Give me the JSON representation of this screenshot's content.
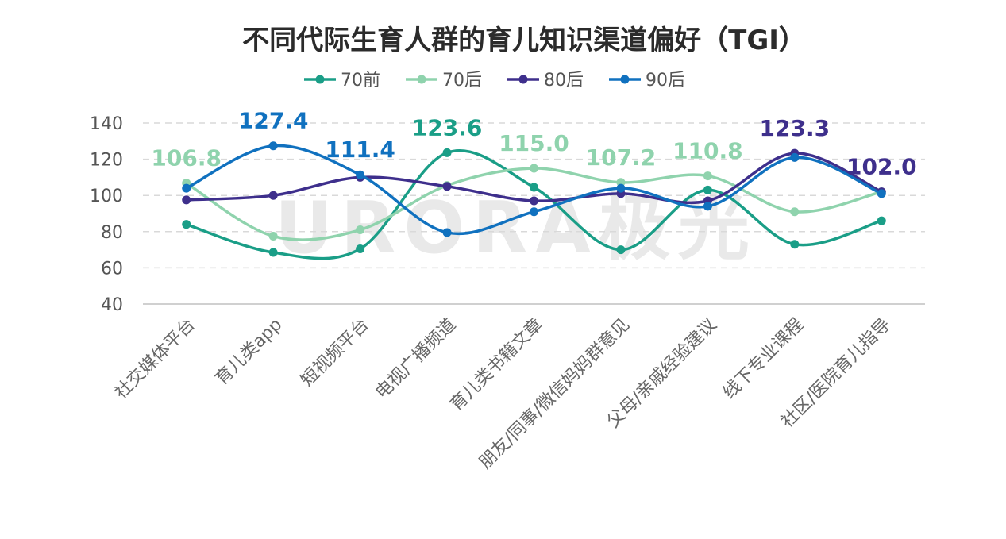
{
  "chart_data": {
    "type": "line",
    "title": "不同代际生育人群的育儿知识渠道偏好（TGI）",
    "watermark": "URORA极光",
    "categories": [
      "社交媒体平台",
      "育儿类app",
      "短视频平台",
      "电视广播频道",
      "育儿类书籍文章",
      "朋友/同事/微信妈妈群意见",
      "父母/亲戚经验建议",
      "线下专业课程",
      "社区/医院育儿指导"
    ],
    "ylim": [
      40,
      140
    ],
    "yticks": [
      40,
      60,
      80,
      100,
      120,
      140
    ],
    "grid": true,
    "legend_position": "top",
    "series": [
      {
        "name": "70前",
        "color": "#1a9e87",
        "values": [
          84,
          68.5,
          70.5,
          123.6,
          104.5,
          70,
          103,
          73,
          86
        ]
      },
      {
        "name": "70后",
        "color": "#8fd3ad",
        "values": [
          106.8,
          77.5,
          81,
          105.5,
          115.0,
          107.2,
          110.8,
          91,
          102
        ]
      },
      {
        "name": "80后",
        "color": "#3e2f8c",
        "values": [
          97.5,
          100,
          110,
          105,
          97,
          101,
          97,
          123.3,
          102.0
        ]
      },
      {
        "name": "90后",
        "color": "#1071bf",
        "values": [
          104,
          127.4,
          111.4,
          79.5,
          91,
          104,
          94,
          121,
          101
        ]
      }
    ],
    "annotations": [
      {
        "text": "106.8",
        "category_index": 0,
        "series": "70后",
        "color": "#8fd3ad"
      },
      {
        "text": "127.4",
        "category_index": 1,
        "series": "90后",
        "color": "#1071bf"
      },
      {
        "text": "111.4",
        "category_index": 2,
        "series": "90后",
        "color": "#1071bf"
      },
      {
        "text": "123.6",
        "category_index": 3,
        "series": "70前",
        "color": "#1a9e87"
      },
      {
        "text": "115.0",
        "category_index": 4,
        "series": "70后",
        "color": "#8fd3ad"
      },
      {
        "text": "107.2",
        "category_index": 5,
        "series": "70后",
        "color": "#8fd3ad"
      },
      {
        "text": "110.8",
        "category_index": 6,
        "series": "70后",
        "color": "#8fd3ad"
      },
      {
        "text": "123.3",
        "category_index": 7,
        "series": "80后",
        "color": "#3e2f8c"
      },
      {
        "text": "102.0",
        "category_index": 8,
        "series": "80后",
        "color": "#3e2f8c"
      }
    ]
  }
}
